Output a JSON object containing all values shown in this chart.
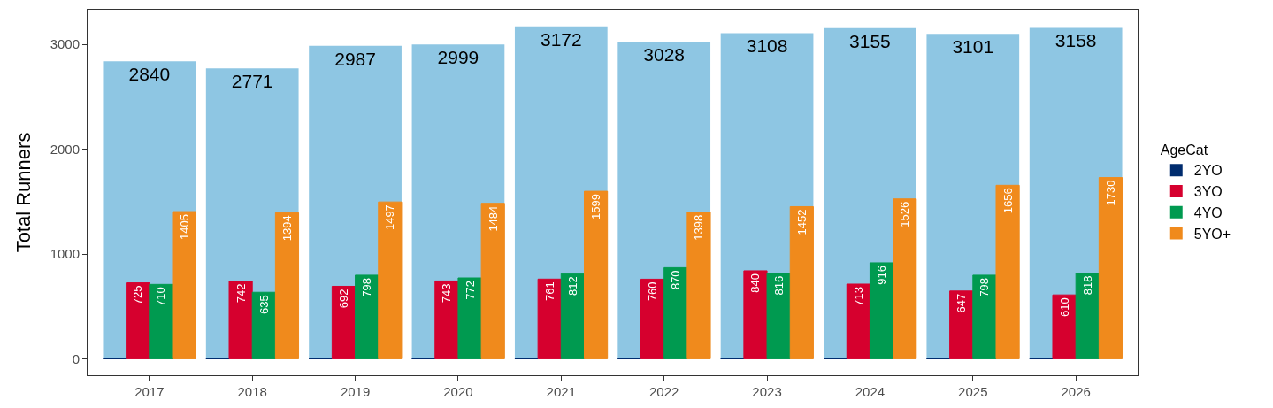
{
  "chart_data": {
    "type": "bar",
    "ylabel": "Total Runners",
    "legend_title": "AgeCat",
    "legend": "right",
    "categories": [
      "2017",
      "2018",
      "2019",
      "2020",
      "2021",
      "2022",
      "2023",
      "2024",
      "2025",
      "2026"
    ],
    "ylim": [
      -157,
      3331
    ],
    "yticks": [
      0,
      1000,
      2000,
      3000
    ],
    "series": [
      {
        "color": "#8ec6e3",
        "values": [
          2840,
          2771,
          2987,
          2999,
          3172,
          3028,
          3108,
          3155,
          3101,
          3158
        ],
        "value_labels": [
          "2840",
          "2771",
          "2987",
          "2999",
          "3172",
          "3028",
          "3108",
          "3155",
          "3101",
          "3158"
        ]
      },
      {
        "name": "2YO",
        "color": "#002c6e",
        "values": [
          0,
          0,
          0,
          0,
          0,
          0,
          0,
          0,
          0,
          0
        ]
      },
      {
        "name": "3YO",
        "color": "#d6002e",
        "values": [
          725,
          742,
          692,
          743,
          761,
          760,
          840,
          713,
          647,
          610
        ],
        "value_labels": [
          "725",
          "742",
          "692",
          "743",
          "761",
          "760",
          "840",
          "713",
          "647",
          "610"
        ]
      },
      {
        "name": "4YO",
        "color": "#009a50",
        "values": [
          710,
          635,
          798,
          772,
          812,
          870,
          816,
          916,
          798,
          818
        ],
        "value_labels": [
          "710",
          "635",
          "798",
          "772",
          "812",
          "870",
          "816",
          "916",
          "798",
          "818"
        ]
      },
      {
        "name": "5YO+",
        "color": "#f08a1c",
        "values": [
          1405,
          1394,
          1497,
          1484,
          1599,
          1398,
          1452,
          1526,
          1656,
          1730
        ],
        "value_labels": [
          "1405",
          "1394",
          "1497",
          "1484",
          "1599",
          "1398",
          "1452",
          "1526",
          "1656",
          "1730"
        ]
      }
    ]
  }
}
